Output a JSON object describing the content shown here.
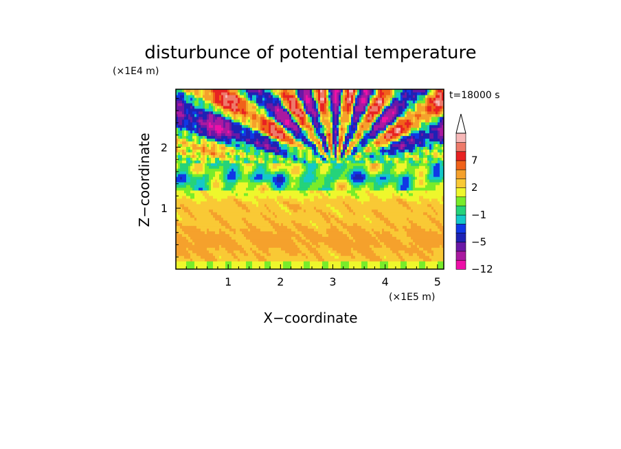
{
  "chart_data": {
    "type": "heatmap",
    "title": "disturbunce of potential temperature",
    "xlabel": "X−coordinate",
    "ylabel": "Z−coordinate",
    "x_scale_label": "(×1E5 m)",
    "y_scale_label": "(×1E4 m)",
    "time_label": "t=18000 s",
    "xlim": [
      0,
      5.12
    ],
    "ylim": [
      0,
      2.95
    ],
    "x_ticks": [
      {
        "value": 1,
        "label": "1"
      },
      {
        "value": 2,
        "label": "2"
      },
      {
        "value": 3,
        "label": "3"
      },
      {
        "value": 4,
        "label": "4"
      },
      {
        "value": 5,
        "label": "5"
      }
    ],
    "y_ticks": [
      {
        "value": 1,
        "label": "1"
      },
      {
        "value": 2,
        "label": "2"
      }
    ],
    "colorbar": {
      "levels": [
        -12,
        -10,
        -7,
        -5,
        -3,
        -2,
        -1,
        0,
        1,
        2,
        3,
        5,
        7,
        9,
        11
      ],
      "colors": [
        "#ee10a8",
        "#aa1aa0",
        "#6a18a6",
        "#1e22b4",
        "#1038e6",
        "#15c8c9",
        "#25d37a",
        "#78ec2a",
        "#eef72c",
        "#f9c935",
        "#f5a12c",
        "#f0621a",
        "#e82222",
        "#ee7a6a",
        "#f7b8b8"
      ],
      "labels": [
        {
          "value": -12,
          "label": "−12"
        },
        {
          "value": -5,
          "label": "−5"
        },
        {
          "value": -1,
          "label": "−1"
        },
        {
          "value": 2,
          "label": "2"
        },
        {
          "value": 7,
          "label": "7"
        }
      ],
      "extend": "max"
    }
  }
}
